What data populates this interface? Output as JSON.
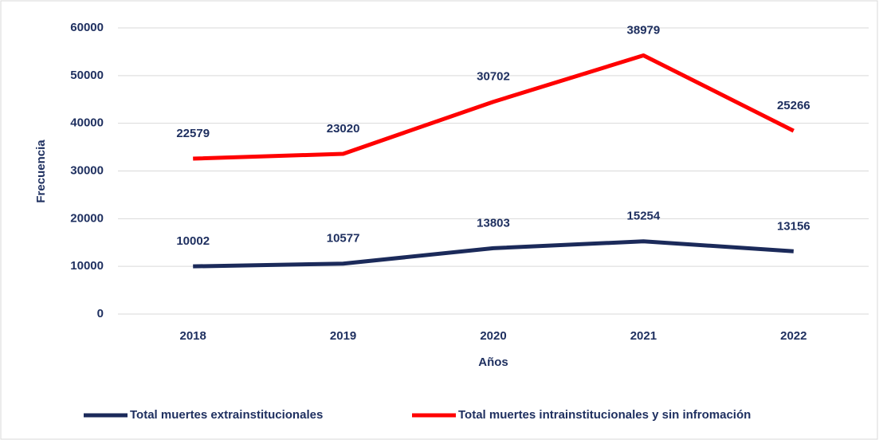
{
  "chart_data": {
    "type": "line",
    "stacked": true,
    "x_label": "Años",
    "y_label": "Frecuencia",
    "categories": [
      "2018",
      "2019",
      "2020",
      "2021",
      "2022"
    ],
    "series": [
      {
        "name": "Total muertes extrainstitucionales",
        "color": "#1b2a5a",
        "values": [
          10002,
          10577,
          13803,
          15254,
          13156
        ]
      },
      {
        "name": "Total muertes intrainstitucionales y sin infromación",
        "color": "#ff0000",
        "values": [
          22579,
          23020,
          30702,
          38979,
          25266
        ]
      }
    ],
    "ylim": [
      0,
      60000
    ],
    "yticks": [
      0,
      10000,
      20000,
      30000,
      40000,
      50000,
      60000
    ],
    "grid": true,
    "legend": "bottom"
  }
}
